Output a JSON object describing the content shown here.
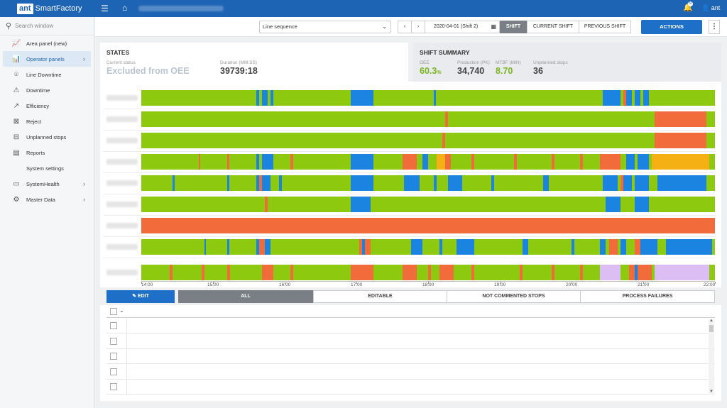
{
  "app": {
    "logo_box": "ant",
    "logo_text": "SmartFactory",
    "notif_count": "9",
    "user": "ant"
  },
  "sidebar": {
    "search_placeholder": "Search window",
    "items": [
      {
        "label": "Area panel (new)",
        "icon": "area-chart-icon",
        "glyph": "📈",
        "chevron": ""
      },
      {
        "label": "Operator panels",
        "icon": "operator-panel-icon",
        "glyph": "📊",
        "chevron": "›"
      },
      {
        "label": "Line Downtime",
        "icon": "location-pin-icon",
        "glyph": "⌾",
        "chevron": ""
      },
      {
        "label": "Downtime",
        "icon": "warning-icon",
        "glyph": "⚠",
        "chevron": ""
      },
      {
        "label": "Efficiency",
        "icon": "trend-icon",
        "glyph": "↗",
        "chevron": ""
      },
      {
        "label": "Reject",
        "icon": "reject-icon",
        "glyph": "⊠",
        "chevron": ""
      },
      {
        "label": "Unplanned stops",
        "icon": "stop-icon",
        "glyph": "⊟",
        "chevron": ""
      },
      {
        "label": "Reports",
        "icon": "report-icon",
        "glyph": "▤",
        "chevron": ""
      },
      {
        "label": "System settings",
        "icon": "",
        "glyph": "",
        "chevron": ""
      },
      {
        "label": "SystemHealth",
        "icon": "monitor-icon",
        "glyph": "▭",
        "chevron": "›"
      },
      {
        "label": "Master Data",
        "icon": "gears-icon",
        "glyph": "⚙",
        "chevron": "›"
      }
    ]
  },
  "toolbar": {
    "line_select": "Line sequence",
    "prev": "‹",
    "next": "›",
    "date": "2020-04-01 (Shift 2)",
    "shift": "SHIFT",
    "current_shift": "CURRENT SHIFT",
    "previous_shift": "PREVIOUS SHIFT",
    "actions": "ACTIONS",
    "more": "⋮"
  },
  "states": {
    "title": "STATES",
    "current_status_label": "Current status",
    "current_status_value": "Excluded from OEE",
    "duration_label": "Duration (MM:SS)",
    "duration_value": "39739:18"
  },
  "summary": {
    "title": "SHIFT SUMMARY",
    "oee_label": "OEE",
    "oee_value": "60.3",
    "oee_unit": "%",
    "production_label": "Production (PK)",
    "production_value": "34,740",
    "mtbf_label": "MTBF (MIN)",
    "mtbf_value": "8.70",
    "unplanned_label": "Unplanned stops",
    "unplanned_value": "36"
  },
  "colors": {
    "green": "#8dc90e",
    "blue": "#1a84e0",
    "red": "#f26b3a",
    "yellow": "#f5b014",
    "lilac": "#dcbef5",
    "accent": "#1e64b4"
  },
  "timeline": {
    "start_hour": 14,
    "end_hour": 22,
    "ticks": [
      "14:00",
      "15:00",
      "16:00",
      "17:00",
      "18:00",
      "19:00",
      "20:00",
      "21:00",
      "22:00"
    ],
    "rows": [
      {
        "segments": [
          [
            0,
            "g"
          ],
          [
            0.2,
            "b"
          ],
          [
            0.205,
            "g"
          ],
          [
            0.21,
            "b"
          ],
          [
            0.22,
            "g"
          ],
          [
            0.225,
            "b"
          ],
          [
            0.23,
            "g"
          ],
          [
            0.365,
            "b"
          ],
          [
            0.405,
            "g"
          ],
          [
            0.51,
            "b"
          ],
          [
            0.513,
            "g"
          ],
          [
            0.805,
            "b"
          ],
          [
            0.835,
            "g"
          ],
          [
            0.84,
            "r"
          ],
          [
            0.845,
            "b"
          ],
          [
            0.855,
            "g"
          ],
          [
            0.86,
            "b"
          ],
          [
            0.87,
            "g"
          ],
          [
            0.875,
            "b"
          ],
          [
            0.885,
            "g"
          ],
          [
            0.995,
            "g"
          ]
        ]
      },
      {
        "segments": [
          [
            0,
            "g"
          ],
          [
            0.53,
            "r"
          ],
          [
            0.535,
            "g"
          ],
          [
            0.895,
            "r"
          ],
          [
            0.985,
            "g"
          ]
        ]
      },
      {
        "segments": [
          [
            0,
            "g"
          ],
          [
            0.525,
            "r"
          ],
          [
            0.53,
            "g"
          ],
          [
            0.895,
            "r"
          ],
          [
            0.985,
            "g"
          ]
        ]
      },
      {
        "segments": [
          [
            0,
            "g"
          ],
          [
            0.1,
            "r"
          ],
          [
            0.103,
            "g"
          ],
          [
            0.15,
            "r"
          ],
          [
            0.153,
            "g"
          ],
          [
            0.2,
            "b"
          ],
          [
            0.205,
            "g"
          ],
          [
            0.21,
            "b"
          ],
          [
            0.23,
            "g"
          ],
          [
            0.26,
            "r"
          ],
          [
            0.265,
            "g"
          ],
          [
            0.365,
            "b"
          ],
          [
            0.405,
            "g"
          ],
          [
            0.455,
            "r"
          ],
          [
            0.48,
            "g"
          ],
          [
            0.49,
            "b"
          ],
          [
            0.5,
            "g"
          ],
          [
            0.515,
            "y"
          ],
          [
            0.53,
            "r"
          ],
          [
            0.54,
            "g"
          ],
          [
            0.575,
            "r"
          ],
          [
            0.58,
            "g"
          ],
          [
            0.65,
            "r"
          ],
          [
            0.655,
            "g"
          ],
          [
            0.715,
            "r"
          ],
          [
            0.72,
            "g"
          ],
          [
            0.765,
            "r"
          ],
          [
            0.77,
            "g"
          ],
          [
            0.8,
            "r"
          ],
          [
            0.835,
            "g"
          ],
          [
            0.845,
            "b"
          ],
          [
            0.86,
            "g"
          ],
          [
            0.865,
            "b"
          ],
          [
            0.885,
            "g"
          ],
          [
            0.89,
            "y"
          ],
          [
            0.99,
            "g"
          ]
        ]
      },
      {
        "segments": [
          [
            0,
            "g"
          ],
          [
            0.055,
            "b"
          ],
          [
            0.058,
            "g"
          ],
          [
            0.15,
            "b"
          ],
          [
            0.153,
            "g"
          ],
          [
            0.2,
            "b"
          ],
          [
            0.205,
            "r"
          ],
          [
            0.21,
            "b"
          ],
          [
            0.225,
            "g"
          ],
          [
            0.24,
            "b"
          ],
          [
            0.245,
            "g"
          ],
          [
            0.365,
            "b"
          ],
          [
            0.405,
            "g"
          ],
          [
            0.458,
            "b"
          ],
          [
            0.485,
            "g"
          ],
          [
            0.51,
            "b"
          ],
          [
            0.515,
            "g"
          ],
          [
            0.535,
            "b"
          ],
          [
            0.56,
            "g"
          ],
          [
            0.61,
            "b"
          ],
          [
            0.615,
            "g"
          ],
          [
            0.7,
            "b"
          ],
          [
            0.71,
            "g"
          ],
          [
            0.805,
            "b"
          ],
          [
            0.83,
            "g"
          ],
          [
            0.835,
            "r"
          ],
          [
            0.84,
            "b"
          ],
          [
            0.855,
            "g"
          ],
          [
            0.86,
            "b"
          ],
          [
            0.885,
            "g"
          ],
          [
            0.9,
            "b"
          ],
          [
            0.985,
            "g"
          ]
        ]
      },
      {
        "segments": [
          [
            0,
            "g"
          ],
          [
            0.215,
            "r"
          ],
          [
            0.22,
            "g"
          ],
          [
            0.365,
            "b"
          ],
          [
            0.4,
            "g"
          ],
          [
            0.81,
            "b"
          ],
          [
            0.835,
            "g"
          ],
          [
            0.86,
            "b"
          ],
          [
            0.885,
            "g"
          ],
          [
            0.995,
            "g"
          ]
        ]
      },
      {
        "segments": [
          [
            0,
            "r"
          ]
        ]
      },
      {
        "segments": [
          [
            0,
            "g"
          ],
          [
            0.11,
            "b"
          ],
          [
            0.113,
            "g"
          ],
          [
            0.15,
            "b"
          ],
          [
            0.153,
            "g"
          ],
          [
            0.2,
            "b"
          ],
          [
            0.205,
            "r"
          ],
          [
            0.215,
            "b"
          ],
          [
            0.225,
            "g"
          ],
          [
            0.37,
            "b"
          ],
          [
            0.375,
            "g"
          ],
          [
            0.37,
            "g"
          ],
          [
            0.38,
            "r"
          ],
          [
            0.385,
            "b"
          ],
          [
            0.39,
            "r"
          ],
          [
            0.4,
            "g"
          ],
          [
            0.47,
            "b"
          ],
          [
            0.49,
            "g"
          ],
          [
            0.52,
            "b"
          ],
          [
            0.525,
            "g"
          ],
          [
            0.55,
            "b"
          ],
          [
            0.58,
            "g"
          ],
          [
            0.665,
            "b"
          ],
          [
            0.67,
            "g"
          ],
          [
            0.67,
            "b"
          ],
          [
            0.675,
            "g"
          ],
          [
            0.75,
            "b"
          ],
          [
            0.755,
            "g"
          ],
          [
            0.8,
            "b"
          ],
          [
            0.81,
            "g"
          ],
          [
            0.815,
            "r"
          ],
          [
            0.83,
            "g"
          ],
          [
            0.835,
            "b"
          ],
          [
            0.845,
            "g"
          ],
          [
            0.86,
            "r"
          ],
          [
            0.87,
            "b"
          ],
          [
            0.9,
            "g"
          ],
          [
            0.915,
            "b"
          ],
          [
            0.995,
            "g"
          ]
        ]
      },
      {
        "segments": [
          [
            0,
            "g"
          ],
          [
            0.05,
            "r"
          ],
          [
            0.055,
            "g"
          ],
          [
            0.105,
            "r"
          ],
          [
            0.11,
            "g"
          ],
          [
            0.15,
            "r"
          ],
          [
            0.155,
            "g"
          ],
          [
            0.21,
            "r"
          ],
          [
            0.23,
            "g"
          ],
          [
            0.26,
            "r"
          ],
          [
            0.265,
            "g"
          ],
          [
            0.365,
            "r"
          ],
          [
            0.405,
            "g"
          ],
          [
            0.455,
            "r"
          ],
          [
            0.48,
            "g"
          ],
          [
            0.5,
            "r"
          ],
          [
            0.505,
            "g"
          ],
          [
            0.52,
            "r"
          ],
          [
            0.545,
            "g"
          ],
          [
            0.575,
            "r"
          ],
          [
            0.58,
            "g"
          ],
          [
            0.66,
            "r"
          ],
          [
            0.665,
            "g"
          ],
          [
            0.715,
            "r"
          ],
          [
            0.72,
            "g"
          ],
          [
            0.765,
            "r"
          ],
          [
            0.77,
            "g"
          ],
          [
            0.8,
            "l"
          ],
          [
            0.835,
            "g"
          ],
          [
            0.85,
            "r"
          ],
          [
            0.86,
            "b"
          ],
          [
            0.865,
            "r"
          ],
          [
            0.89,
            "g"
          ],
          [
            0.895,
            "l"
          ],
          [
            0.99,
            "g"
          ]
        ]
      }
    ]
  },
  "filters": {
    "edit": "EDIT",
    "all": "ALL",
    "editable": "EDITABLE",
    "not_commented": "NOT COMMENTED STOPS",
    "process_failures": "PROCESS FAILURES"
  }
}
